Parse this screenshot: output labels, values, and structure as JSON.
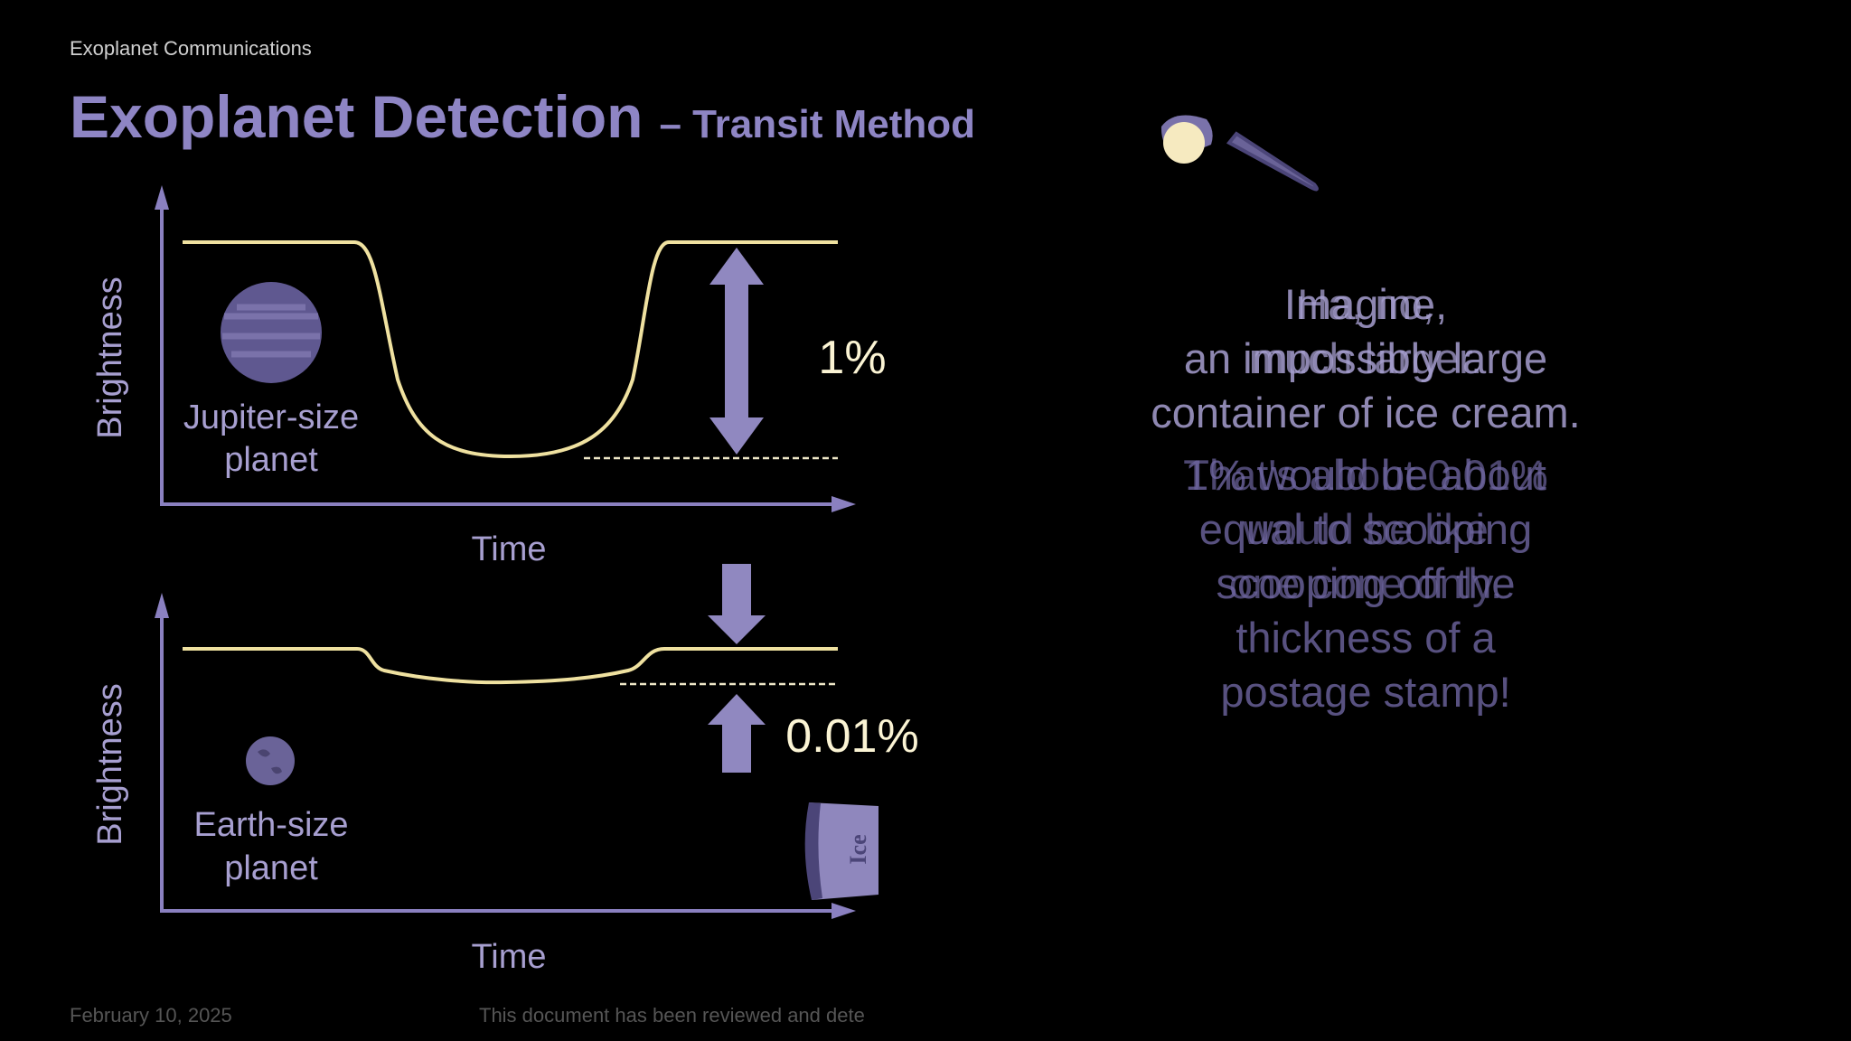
{
  "header": {
    "section": "Exoplanet Communications",
    "title": "Exoplanet Detection",
    "title_suffix": "– Transit Method"
  },
  "diagrams": [
    {
      "y_label": "Brightness",
      "x_label": "Time",
      "planet_label": [
        "Jupiter-size",
        "planet"
      ],
      "change_label": "1%"
    },
    {
      "y_label": "Brightness",
      "x_label": "Time",
      "planet_label": [
        "Earth-size",
        "planet"
      ],
      "change_label": "0.01%"
    }
  ],
  "bucket_label": "Ice",
  "narration": {
    "intro_a": [
      "Imagine,",
      "an impossibly large",
      "container of ice cream."
    ],
    "intro_b": [
      "Ha, no,",
      "much larger."
    ],
    "detail_a": [
      "1% would be about",
      "equal to scooping",
      "scooping off the",
      "thickness of a",
      "postage stamp!"
    ],
    "detail_b": [
      "That's about 0.01%",
      "would be like",
      "one cone only."
    ]
  },
  "footer": {
    "date": "February 10, 2025",
    "notice": "This document has been reviewed and dete"
  }
}
